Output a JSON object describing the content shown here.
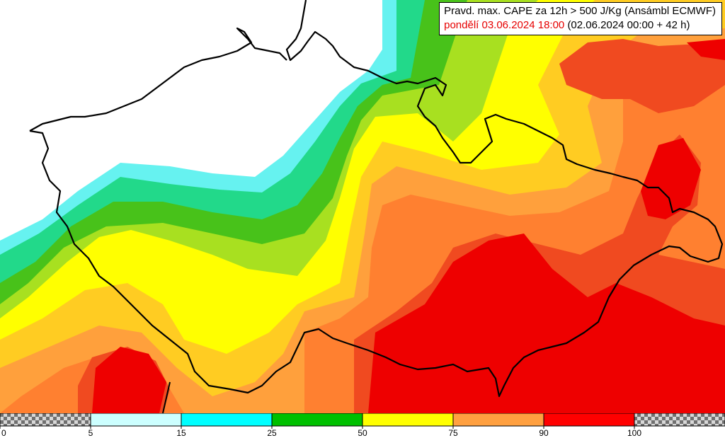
{
  "title": {
    "line1": "Pravd. max. CAPE za 12h > 500 J/Kg (Ansámbl ECMWF)",
    "valid_time": "pondělí 03.06.2024 18:00",
    "run_info": "(02.06.2024 00:00 + 42 h)"
  },
  "legend": {
    "ticks": [
      "0",
      "5",
      "15",
      "25",
      "50",
      "75",
      "90",
      "100"
    ],
    "bins": [
      {
        "from": 0,
        "to": 5,
        "color": "checker"
      },
      {
        "from": 5,
        "to": 15,
        "color": "#ccffff"
      },
      {
        "from": 15,
        "to": 25,
        "color": "#00ffff"
      },
      {
        "from": 25,
        "to": 50,
        "color": "#00c000"
      },
      {
        "from": 50,
        "to": 75,
        "color": "#ffff00"
      },
      {
        "from": 75,
        "to": 90,
        "color": "#ffa040"
      },
      {
        "from": 90,
        "to": 100,
        "color": "#ff0000"
      },
      {
        "from": 100,
        "to": 100,
        "color": "checker"
      }
    ]
  },
  "colors": {
    "bg": "#ffffff",
    "c5": "#66f2f0",
    "c15": "#22d98a",
    "c25": "#48c21a",
    "c35": "#a8e020",
    "c50": "#ffff00",
    "c65": "#ffcc22",
    "c75": "#ffa03c",
    "c82": "#ff8030",
    "c90": "#f04a20",
    "c95": "#ee0000",
    "border": "#000000"
  }
}
